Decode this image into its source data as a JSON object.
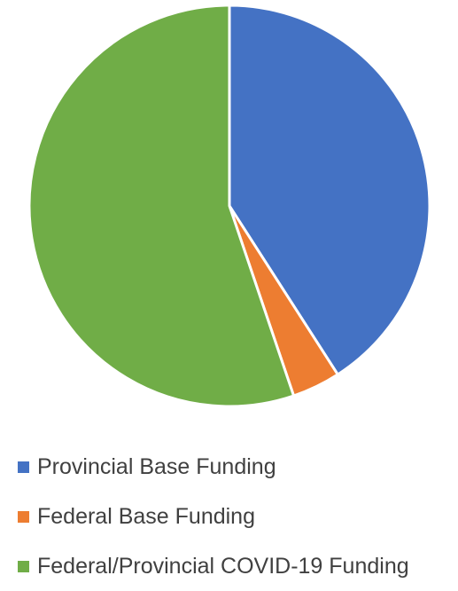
{
  "chart_data": {
    "type": "pie",
    "title": "",
    "categories": [
      "Provincial Base Funding",
      "Federal Base Funding",
      "Federal/Provincial COVID-19 Funding"
    ],
    "values": [
      40.9,
      3.9,
      55.2
    ],
    "unit": "percent",
    "colors": [
      "#4472C4",
      "#ED7D31",
      "#70AD47"
    ],
    "start_angle_deg": 0,
    "direction": "clockwise",
    "legend_position": "bottom",
    "grid": false
  }
}
